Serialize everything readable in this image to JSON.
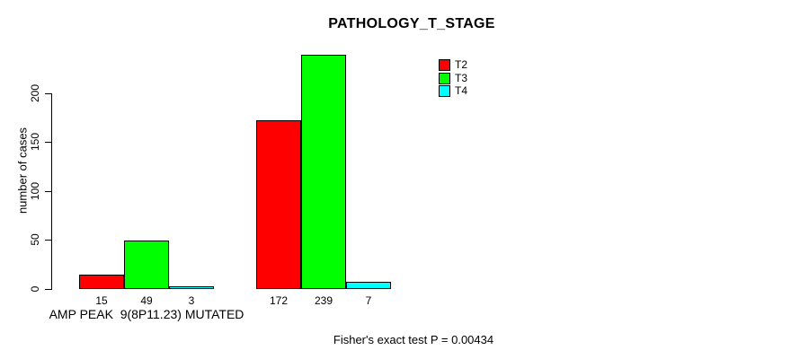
{
  "chart_data": {
    "type": "bar",
    "title": "PATHOLOGY_T_STAGE",
    "ylabel": "number of cases",
    "xlabel": "",
    "categories": [
      "AMP PEAK  9(8P11.23) MUTATED",
      ""
    ],
    "series": [
      {
        "name": "T2",
        "color": "#ff0000",
        "values": [
          15,
          172
        ]
      },
      {
        "name": "T3",
        "color": "#00ff00",
        "values": [
          49,
          239
        ]
      },
      {
        "name": "T4",
        "color": "#00ffff",
        "values": [
          3,
          7
        ]
      }
    ],
    "yticks": [
      0,
      50,
      100,
      150,
      200
    ],
    "ylim": [
      0,
      245
    ],
    "grid": false,
    "legend_position": "top-right",
    "axis_color": "#000000",
    "background_color": "#ffffff",
    "annotation": "Fisher's exact test P = 0.00434"
  }
}
